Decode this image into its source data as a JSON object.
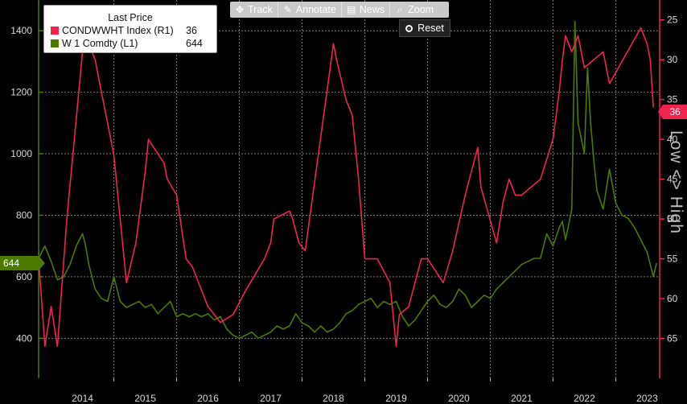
{
  "legend": {
    "title": "Last Price",
    "items": [
      {
        "label": "CONDWWHT Index  (R1)",
        "value": "36",
        "color": "#f0244e"
      },
      {
        "label": "W 1 Comdty  (L1)",
        "value": "644",
        "color": "#4a7a00"
      }
    ]
  },
  "toolbar": {
    "items": [
      {
        "label": "Track",
        "icon": "crosshair-icon"
      },
      {
        "label": "Annotate",
        "icon": "pencil-icon"
      },
      {
        "label": "News",
        "icon": "newspaper-icon"
      },
      {
        "label": "Zoom",
        "icon": "magnifier-icon"
      }
    ],
    "reset_label": "Reset"
  },
  "last_value_tags": {
    "left": "644",
    "right": "36"
  },
  "right_axis_label": "Low <> High",
  "chart_data": {
    "type": "line",
    "x_axis": {
      "ticks": [
        "2014",
        "2015",
        "2016",
        "2017",
        "2018",
        "2019",
        "2020",
        "2021",
        "2022",
        "2023"
      ],
      "range": [
        2013.3,
        2023.2
      ]
    },
    "left_axis": {
      "ticks": [
        400,
        600,
        800,
        1000,
        1200,
        1400
      ],
      "range": [
        270,
        1500
      ]
    },
    "right_axis": {
      "ticks": [
        25,
        30,
        35,
        40,
        45,
        50,
        55,
        60,
        65
      ],
      "range": [
        70,
        22.5
      ],
      "inverted": true
    },
    "grid": true,
    "legend_position": "top-left",
    "series": [
      {
        "name": "W 1 Comdty (L1)",
        "axis": "left",
        "color": "#4a7a00",
        "x": [
          2013.3,
          2013.4,
          2013.5,
          2013.6,
          2013.7,
          2013.8,
          2013.9,
          2014.0,
          2014.05,
          2014.1,
          2014.2,
          2014.3,
          2014.4,
          2014.5,
          2014.6,
          2014.7,
          2014.8,
          2014.9,
          2015.0,
          2015.1,
          2015.2,
          2015.3,
          2015.4,
          2015.5,
          2015.6,
          2015.7,
          2015.8,
          2015.9,
          2016.0,
          2016.1,
          2016.2,
          2016.3,
          2016.4,
          2016.5,
          2016.6,
          2016.7,
          2016.8,
          2016.9,
          2017.0,
          2017.1,
          2017.2,
          2017.3,
          2017.4,
          2017.5,
          2017.6,
          2017.7,
          2017.8,
          2017.9,
          2018.0,
          2018.1,
          2018.2,
          2018.3,
          2018.4,
          2018.5,
          2018.6,
          2018.7,
          2018.8,
          2018.9,
          2019.0,
          2019.1,
          2019.2,
          2019.3,
          2019.4,
          2019.5,
          2019.6,
          2019.7,
          2019.8,
          2019.9,
          2020.0,
          2020.1,
          2020.2,
          2020.3,
          2020.4,
          2020.5,
          2020.6,
          2020.7,
          2020.8,
          2020.9,
          2021.0,
          2021.1,
          2021.2,
          2021.3,
          2021.4,
          2021.5,
          2021.6,
          2021.65,
          2021.7,
          2021.8,
          2021.85,
          2021.9,
          2022.0,
          2022.05,
          2022.1,
          2022.15,
          2022.2,
          2022.3,
          2022.4,
          2022.5,
          2022.6,
          2022.7,
          2022.8,
          2022.9,
          2023.0,
          2023.05,
          2023.1,
          2023.15
        ],
        "values": [
          660,
          700,
          650,
          590,
          600,
          640,
          700,
          740,
          700,
          640,
          560,
          530,
          520,
          600,
          520,
          500,
          510,
          520,
          500,
          510,
          480,
          500,
          520,
          470,
          480,
          470,
          480,
          470,
          480,
          460,
          470,
          430,
          410,
          400,
          410,
          420,
          400,
          410,
          420,
          440,
          430,
          440,
          480,
          450,
          440,
          420,
          440,
          420,
          430,
          450,
          480,
          490,
          510,
          520,
          530,
          500,
          520,
          510,
          520,
          470,
          440,
          460,
          490,
          520,
          540,
          510,
          500,
          520,
          560,
          540,
          500,
          520,
          540,
          530,
          560,
          580,
          600,
          620,
          640,
          650,
          660,
          660,
          740,
          700,
          760,
          780,
          720,
          820,
          1430,
          1100,
          1000,
          1280,
          1100,
          980,
          880,
          820,
          950,
          840,
          800,
          790,
          760,
          720,
          680,
          640,
          600,
          644
        ]
      },
      {
        "name": "CONDWWHT Index (R1)",
        "axis": "right",
        "color": "#f0244e",
        "x": [
          2013.3,
          2013.4,
          2013.5,
          2013.6,
          2013.75,
          2014.0,
          2014.05,
          2014.2,
          2014.5,
          2014.7,
          2014.85,
          2015.0,
          2015.05,
          2015.3,
          2015.35,
          2015.5,
          2015.65,
          2015.75,
          2015.95,
          2016.0,
          2016.2,
          2016.4,
          2016.6,
          2016.9,
          2017.0,
          2017.05,
          2017.3,
          2017.35,
          2017.45,
          2017.55,
          2018.0,
          2018.05,
          2018.2,
          2018.3,
          2018.4,
          2018.5,
          2018.7,
          2018.9,
          2019.0,
          2019.05,
          2019.2,
          2019.4,
          2019.5,
          2019.75,
          2019.9,
          2020.1,
          2020.3,
          2020.35,
          2020.6,
          2020.7,
          2020.8,
          2020.9,
          2021.0,
          2021.3,
          2021.5,
          2021.6,
          2021.65,
          2021.7,
          2021.8,
          2021.9,
          2022.0,
          2022.3,
          2022.4,
          2022.9,
          2023.0,
          2023.05,
          2023.1
        ],
        "values": [
          55,
          66,
          61,
          66,
          50,
          29,
          27,
          30,
          42,
          58,
          53,
          44,
          40,
          43,
          45,
          47,
          55,
          56,
          60,
          61,
          63,
          62,
          59,
          55,
          53,
          50,
          49,
          50,
          53,
          54,
          28,
          30,
          35,
          37,
          45,
          55,
          55,
          58,
          66,
          62,
          61,
          55,
          55,
          58,
          54,
          47,
          41,
          46,
          53,
          48,
          45,
          47,
          47,
          45,
          40,
          34,
          30,
          27,
          29,
          27,
          31,
          29,
          33,
          26,
          28,
          30,
          36
        ]
      }
    ]
  }
}
